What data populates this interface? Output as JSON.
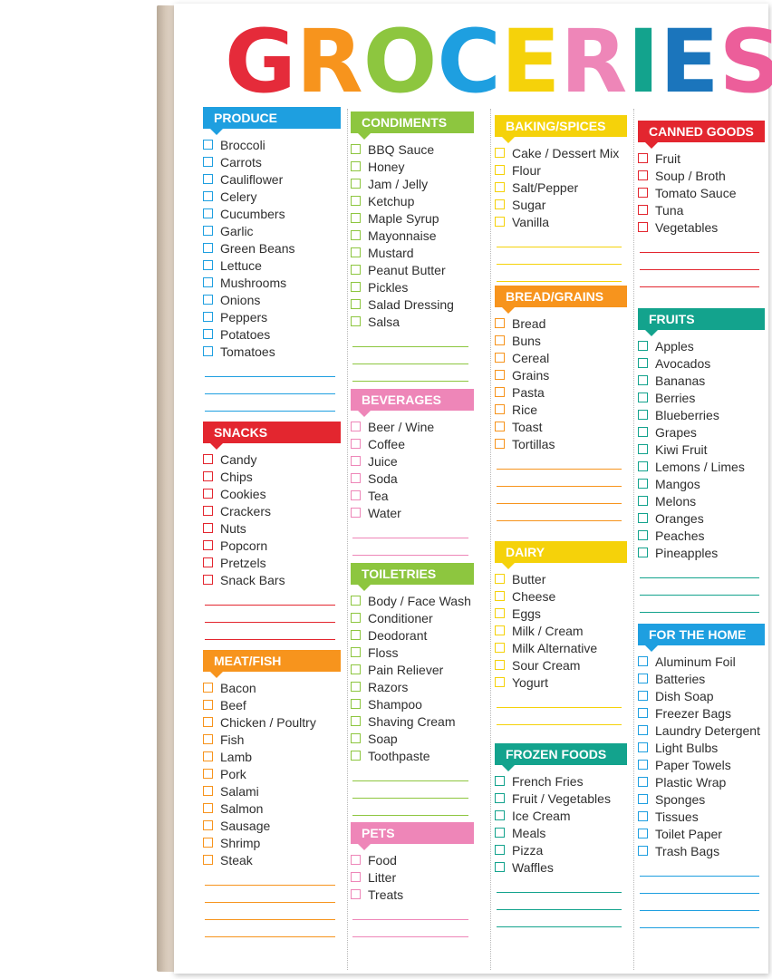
{
  "title_letters": [
    {
      "ch": "G",
      "color": "#e52b3a"
    },
    {
      "ch": "R",
      "color": "#f7941d"
    },
    {
      "ch": "O",
      "color": "#8dc63f"
    },
    {
      "ch": "C",
      "color": "#1e9fe0"
    },
    {
      "ch": "E",
      "color": "#f5d20a"
    },
    {
      "ch": "R",
      "color": "#ee86b8"
    },
    {
      "ch": "I",
      "color": "#13a38d"
    },
    {
      "ch": "E",
      "color": "#1b75bc"
    },
    {
      "ch": "S",
      "color": "#ec5e9a"
    }
  ],
  "columns": [
    {
      "sections": [
        {
          "name": "PRODUCE",
          "color": "#1e9fe0",
          "items": [
            "Broccoli",
            "Carrots",
            "Cauliflower",
            "Celery",
            "Cucumbers",
            "Garlic",
            "Green Beans",
            "Lettuce",
            "Mushrooms",
            "Onions",
            "Peppers",
            "Potatoes",
            "Tomatoes"
          ],
          "lines": 3
        },
        {
          "name": "SNACKS",
          "color": "#e3262f",
          "items": [
            "Candy",
            "Chips",
            "Cookies",
            "Crackers",
            "Nuts",
            "Popcorn",
            "Pretzels",
            "Snack Bars"
          ],
          "lines": 3
        },
        {
          "name": "MEAT/FISH",
          "color": "#f7941d",
          "items": [
            "Bacon",
            "Beef",
            "Chicken / Poultry",
            "Fish",
            "Lamb",
            "Pork",
            "Salami",
            "Salmon",
            "Sausage",
            "Shrimp",
            "Steak"
          ],
          "lines": 4
        }
      ]
    },
    {
      "sections": [
        {
          "name": "CONDIMENTS",
          "color": "#8dc63f",
          "items": [
            "BBQ Sauce",
            "Honey",
            "Jam / Jelly",
            "Ketchup",
            "Maple Syrup",
            "Mayonnaise",
            "Mustard",
            "Peanut Butter",
            "Pickles",
            "Salad Dressing",
            "Salsa"
          ],
          "lines": 3
        },
        {
          "name": "BEVERAGES",
          "color": "#ee86b8",
          "items": [
            "Beer / Wine",
            "Coffee",
            "Juice",
            "Soda",
            "Tea",
            "Water"
          ],
          "lines": 2
        },
        {
          "name": "TOILETRIES",
          "color": "#8dc63f",
          "items": [
            "Body / Face Wash",
            "Conditioner",
            "Deodorant",
            "Floss",
            "Pain Reliever",
            "Razors",
            "Shampoo",
            "Shaving Cream",
            "Soap",
            "Toothpaste"
          ],
          "lines": 3
        },
        {
          "name": "PETS",
          "color": "#ee86b8",
          "items": [
            "Food",
            "Litter",
            "Treats"
          ],
          "lines": 2
        }
      ]
    },
    {
      "sections": [
        {
          "name": "BAKING/SPICES",
          "color": "#f5d20a",
          "items": [
            "Cake / Dessert Mix",
            "Flour",
            "Salt/Pepper",
            "Sugar",
            "Vanilla"
          ],
          "lines": 3
        },
        {
          "name": "BREAD/GRAINS",
          "color": "#f7941d",
          "items": [
            "Bread",
            "Buns",
            "Cereal",
            "Grains",
            "Pasta",
            "Rice",
            "Toast",
            "Tortillas"
          ],
          "lines": 4
        },
        {
          "name": "DAIRY",
          "color": "#f5d20a",
          "items": [
            "Butter",
            "Cheese",
            "Eggs",
            "Milk / Cream",
            "Milk Alternative",
            "Sour Cream",
            "Yogurt"
          ],
          "lines": 2
        },
        {
          "name": "FROZEN FOODS",
          "color": "#13a38d",
          "items": [
            "French Fries",
            "Fruit / Vegetables",
            "Ice Cream",
            "Meals",
            "Pizza",
            "Waffles"
          ],
          "lines": 3
        }
      ]
    },
    {
      "sections": [
        {
          "name": "CANNED GOODS",
          "color": "#e3262f",
          "items": [
            "Fruit",
            "Soup / Broth",
            "Tomato Sauce",
            "Tuna",
            "Vegetables"
          ],
          "lines": 3
        },
        {
          "name": "FRUITS",
          "color": "#13a38d",
          "items": [
            "Apples",
            "Avocados",
            "Bananas",
            "Berries",
            "Blueberries",
            "Grapes",
            "Kiwi Fruit",
            "Lemons / Limes",
            "Mangos",
            "Melons",
            "Oranges",
            "Peaches",
            "Pineapples"
          ],
          "lines": 3
        },
        {
          "name": "FOR THE HOME",
          "color": "#1e9fe0",
          "items": [
            "Aluminum Foil",
            "Batteries",
            "Dish Soap",
            "Freezer Bags",
            "Laundry Detergent",
            "Light Bulbs",
            "Paper Towels",
            "Plastic Wrap",
            "Sponges",
            "Tissues",
            "Toilet Paper",
            "Trash Bags"
          ],
          "lines": 4
        }
      ]
    }
  ]
}
